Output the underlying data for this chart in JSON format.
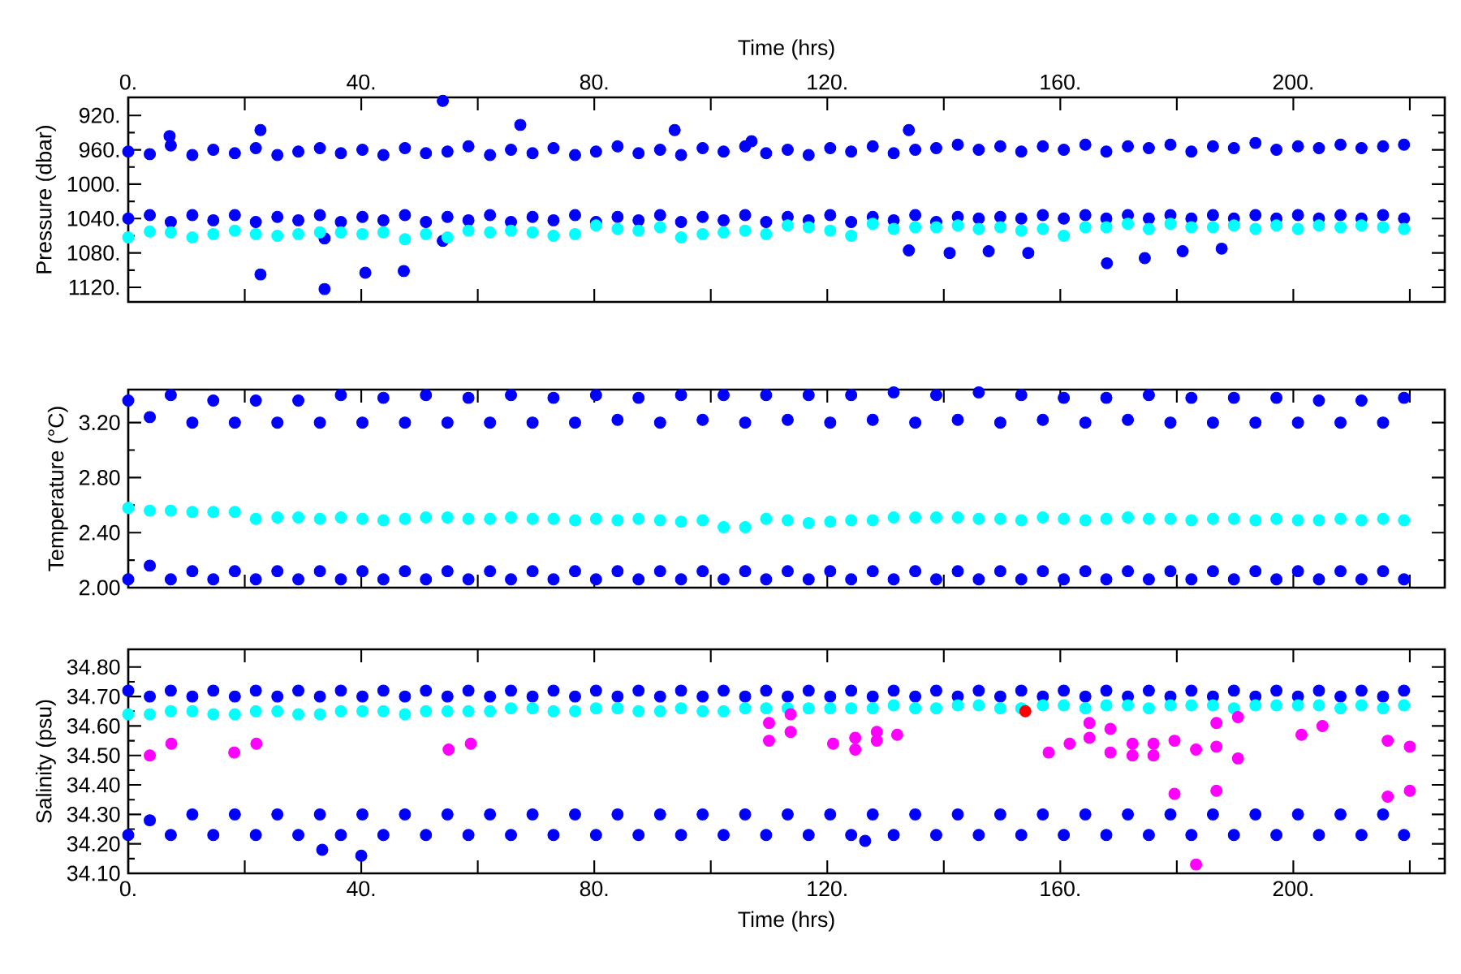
{
  "chart_data": [
    {
      "type": "scatter",
      "xlabel": "Time (hrs)",
      "ylabel": "Pressure (dbar)",
      "marker": "circle",
      "xlim": [
        0,
        226
      ],
      "xticks": [
        {
          "value": 0,
          "label": "0."
        },
        {
          "value": 20,
          "label": null
        },
        {
          "value": 40,
          "label": "40."
        },
        {
          "value": 60,
          "label": null
        },
        {
          "value": 80,
          "label": "80."
        },
        {
          "value": 100,
          "label": null
        },
        {
          "value": 120,
          "label": "120."
        },
        {
          "value": 140,
          "label": null
        },
        {
          "value": 160,
          "label": "160."
        },
        {
          "value": 180,
          "label": null
        },
        {
          "value": 200,
          "label": "200."
        },
        {
          "value": 220,
          "label": null
        }
      ],
      "ylim": [
        1137,
        899
      ],
      "yticks": [
        {
          "value": 920,
          "label": "920."
        },
        {
          "value": 960,
          "label": "960."
        },
        {
          "value": 1000,
          "label": "1000."
        },
        {
          "value": 1040,
          "label": "1040."
        },
        {
          "value": 1080,
          "label": "1080."
        },
        {
          "value": 1120,
          "label": "1120."
        }
      ],
      "series": [
        {
          "color": "#0000ff",
          "x": [
            0,
            3.7,
            7.3,
            11,
            14.6,
            18.3,
            21.9,
            25.6,
            29.2,
            32.9,
            36.5,
            40.2,
            43.8,
            47.5,
            51.1,
            54.8,
            58.4,
            62.1,
            65.7,
            69.4,
            73,
            76.7,
            80.3,
            84,
            87.6,
            91.3,
            94.9,
            98.6,
            102.2,
            105.9,
            109.5,
            113.2,
            116.8,
            120.5,
            124.1,
            127.8,
            131.4,
            135.1,
            138.7,
            142.4,
            146,
            149.7,
            153.3,
            157,
            160.6,
            164.3,
            167.9,
            171.6,
            175.2,
            178.9,
            182.5,
            186.2,
            189.8,
            193.5,
            197.1,
            200.8,
            204.4,
            208.1,
            211.7,
            215.4,
            219,
            0,
            3.7,
            7.3,
            11,
            14.6,
            18.3,
            21.9,
            25.6,
            29.2,
            32.9,
            36.5,
            40.2,
            43.8,
            47.5,
            51.1,
            54.8,
            58.4,
            62.1,
            65.7,
            69.4,
            73,
            76.7,
            80.3,
            84,
            87.6,
            91.3,
            94.9,
            98.6,
            102.2,
            105.9,
            109.5,
            113.2,
            116.8,
            120.5,
            124.1,
            127.8,
            131.4,
            135.1,
            138.7,
            142.4,
            146,
            149.7,
            153.3,
            157,
            160.6,
            164.3,
            167.9,
            171.6,
            175.2,
            178.9,
            182.5,
            186.2,
            189.8,
            193.5,
            197.1,
            200.8,
            204.4,
            208.1,
            211.7,
            215.4,
            219,
            7.1,
            22.7,
            22.7,
            33.7,
            33.7,
            40.7,
            47.3,
            54,
            54,
            67.3,
            93.8,
            107,
            134,
            134,
            141,
            147.7,
            154.5,
            168,
            174.5,
            181,
            187.7
          ],
          "values": [
            962,
            965,
            955,
            966,
            960,
            964,
            958,
            966,
            962,
            958,
            964,
            960,
            966,
            958,
            964,
            962,
            956,
            966,
            960,
            964,
            958,
            966,
            962,
            956,
            964,
            960,
            966,
            958,
            962,
            956,
            964,
            960,
            966,
            958,
            962,
            956,
            964,
            960,
            958,
            954,
            960,
            956,
            962,
            956,
            960,
            954,
            962,
            956,
            958,
            954,
            962,
            956,
            958,
            952,
            960,
            956,
            958,
            954,
            958,
            956,
            954,
            1040,
            1036,
            1044,
            1036,
            1042,
            1036,
            1044,
            1038,
            1042,
            1036,
            1044,
            1038,
            1042,
            1036,
            1044,
            1038,
            1042,
            1036,
            1044,
            1038,
            1042,
            1036,
            1044,
            1038,
            1042,
            1036,
            1044,
            1038,
            1042,
            1036,
            1044,
            1038,
            1042,
            1036,
            1044,
            1038,
            1042,
            1036,
            1044,
            1038,
            1040,
            1038,
            1040,
            1036,
            1040,
            1036,
            1040,
            1036,
            1040,
            1036,
            1040,
            1036,
            1040,
            1036,
            1040,
            1036,
            1040,
            1036,
            1040,
            1036,
            1040,
            944,
            937,
            1105,
            1122,
            1063,
            1103,
            1101,
            903,
            1066,
            931,
            937,
            950,
            937,
            1077,
            1080,
            1078,
            1080,
            1092,
            1086,
            1078,
            1075
          ]
        },
        {
          "color": "#00ffff",
          "x": [
            0,
            3.7,
            7.3,
            11,
            14.6,
            18.3,
            21.9,
            25.6,
            29.2,
            32.9,
            36.5,
            40.2,
            43.8,
            47.5,
            51.1,
            54.8,
            58.4,
            62.1,
            65.7,
            69.4,
            73,
            76.7,
            80.3,
            84,
            87.6,
            91.3,
            94.9,
            98.6,
            102.2,
            105.9,
            109.5,
            113.2,
            116.8,
            120.5,
            124.1,
            127.8,
            131.4,
            135.1,
            138.7,
            142.4,
            146,
            149.7,
            153.3,
            157,
            160.6,
            164.3,
            167.9,
            171.6,
            175.2,
            178.9,
            182.5,
            186.2,
            189.8,
            193.5,
            197.1,
            200.8,
            204.4,
            208.1,
            211.7,
            215.4,
            219
          ],
          "values": [
            1062,
            1055,
            1056,
            1062,
            1058,
            1054,
            1058,
            1060,
            1058,
            1056,
            1056,
            1058,
            1056,
            1064,
            1058,
            1062,
            1054,
            1056,
            1054,
            1056,
            1060,
            1058,
            1048,
            1052,
            1054,
            1050,
            1062,
            1058,
            1056,
            1054,
            1058,
            1048,
            1050,
            1054,
            1060,
            1046,
            1052,
            1050,
            1050,
            1048,
            1052,
            1050,
            1054,
            1052,
            1060,
            1050,
            1050,
            1046,
            1052,
            1046,
            1050,
            1050,
            1048,
            1052,
            1048,
            1052,
            1048,
            1050,
            1048,
            1050,
            1052
          ]
        }
      ]
    },
    {
      "type": "scatter",
      "ylabel": "Temperature (°C)",
      "marker": "circle",
      "tick_labels": "y",
      "xlim": [
        0,
        226
      ],
      "xticks": [
        {
          "value": 0,
          "label": null
        },
        {
          "value": 20,
          "label": null
        },
        {
          "value": 40,
          "label": null
        },
        {
          "value": 60,
          "label": null
        },
        {
          "value": 80,
          "label": null
        },
        {
          "value": 100,
          "label": null
        },
        {
          "value": 120,
          "label": null
        },
        {
          "value": 140,
          "label": null
        },
        {
          "value": 160,
          "label": null
        },
        {
          "value": 180,
          "label": null
        },
        {
          "value": 200,
          "label": null
        },
        {
          "value": 220,
          "label": null
        }
      ],
      "ylim": [
        2.0,
        3.44
      ],
      "yticks": [
        {
          "value": 2.0,
          "label": "2.00"
        },
        {
          "value": 2.4,
          "label": "2.40"
        },
        {
          "value": 2.8,
          "label": "2.80"
        },
        {
          "value": 3.2,
          "label": "3.20"
        }
      ],
      "series": [
        {
          "color": "#0000ff",
          "x": [
            0,
            3.7,
            7.3,
            11,
            14.6,
            18.3,
            21.9,
            25.6,
            29.2,
            32.9,
            36.5,
            40.2,
            43.8,
            47.5,
            51.1,
            54.8,
            58.4,
            62.1,
            65.7,
            69.4,
            73,
            76.7,
            80.3,
            84,
            87.6,
            91.3,
            94.9,
            98.6,
            102.2,
            105.9,
            109.5,
            113.2,
            116.8,
            120.5,
            124.1,
            127.8,
            131.4,
            135.1,
            138.7,
            142.4,
            146,
            149.7,
            153.3,
            157,
            160.6,
            164.3,
            167.9,
            171.6,
            175.2,
            178.9,
            182.5,
            186.2,
            189.8,
            193.5,
            197.1,
            200.8,
            204.4,
            208.1,
            211.7,
            215.4,
            219,
            0,
            3.7,
            7.3,
            11,
            14.6,
            18.3,
            21.9,
            25.6,
            29.2,
            32.9,
            36.5,
            40.2,
            43.8,
            47.5,
            51.1,
            54.8,
            58.4,
            62.1,
            65.7,
            69.4,
            73,
            76.7,
            80.3,
            84,
            87.6,
            91.3,
            94.9,
            98.6,
            102.2,
            105.9,
            109.5,
            113.2,
            116.8,
            120.5,
            124.1,
            127.8,
            131.4,
            135.1,
            138.7,
            142.4,
            146,
            149.7,
            153.3,
            157,
            160.6,
            164.3,
            167.9,
            171.6,
            175.2,
            178.9,
            182.5,
            186.2,
            189.8,
            193.5,
            197.1,
            200.8,
            204.4,
            208.1,
            211.7,
            215.4,
            219
          ],
          "values": [
            3.36,
            3.24,
            3.4,
            3.2,
            3.36,
            3.2,
            3.36,
            3.2,
            3.36,
            3.2,
            3.4,
            3.2,
            3.38,
            3.2,
            3.4,
            3.2,
            3.38,
            3.2,
            3.4,
            3.2,
            3.38,
            3.2,
            3.4,
            3.22,
            3.38,
            3.2,
            3.4,
            3.22,
            3.4,
            3.2,
            3.4,
            3.22,
            3.4,
            3.2,
            3.4,
            3.22,
            3.42,
            3.2,
            3.4,
            3.22,
            3.42,
            3.2,
            3.4,
            3.22,
            3.38,
            3.2,
            3.38,
            3.22,
            3.4,
            3.2,
            3.38,
            3.2,
            3.38,
            3.2,
            3.38,
            3.2,
            3.36,
            3.2,
            3.36,
            3.2,
            3.38,
            2.06,
            2.16,
            2.06,
            2.12,
            2.06,
            2.12,
            2.06,
            2.12,
            2.06,
            2.12,
            2.06,
            2.12,
            2.06,
            2.12,
            2.06,
            2.12,
            2.06,
            2.12,
            2.06,
            2.12,
            2.06,
            2.12,
            2.06,
            2.12,
            2.06,
            2.12,
            2.06,
            2.12,
            2.06,
            2.12,
            2.06,
            2.12,
            2.06,
            2.12,
            2.06,
            2.12,
            2.06,
            2.12,
            2.06,
            2.12,
            2.06,
            2.12,
            2.06,
            2.12,
            2.06,
            2.12,
            2.06,
            2.12,
            2.06,
            2.12,
            2.06,
            2.12,
            2.06,
            2.12,
            2.06,
            2.12,
            2.06,
            2.12,
            2.06,
            2.12,
            2.06
          ]
        },
        {
          "color": "#00ffff",
          "x": [
            0,
            3.7,
            7.3,
            11,
            14.6,
            18.3,
            21.9,
            25.6,
            29.2,
            32.9,
            36.5,
            40.2,
            43.8,
            47.5,
            51.1,
            54.8,
            58.4,
            62.1,
            65.7,
            69.4,
            73,
            76.7,
            80.3,
            84,
            87.6,
            91.3,
            94.9,
            98.6,
            102.2,
            105.9,
            109.5,
            113.2,
            116.8,
            120.5,
            124.1,
            127.8,
            131.4,
            135.1,
            138.7,
            142.4,
            146,
            149.7,
            153.3,
            157,
            160.6,
            164.3,
            167.9,
            171.6,
            175.2,
            178.9,
            182.5,
            186.2,
            189.8,
            193.5,
            197.1,
            200.8,
            204.4,
            208.1,
            211.7,
            215.4,
            219
          ],
          "values": [
            2.58,
            2.56,
            2.56,
            2.55,
            2.55,
            2.55,
            2.5,
            2.51,
            2.51,
            2.5,
            2.51,
            2.5,
            2.49,
            2.5,
            2.51,
            2.51,
            2.5,
            2.5,
            2.51,
            2.5,
            2.5,
            2.49,
            2.5,
            2.49,
            2.5,
            2.49,
            2.48,
            2.49,
            2.44,
            2.44,
            2.5,
            2.49,
            2.47,
            2.48,
            2.49,
            2.49,
            2.51,
            2.51,
            2.51,
            2.51,
            2.5,
            2.5,
            2.49,
            2.51,
            2.5,
            2.49,
            2.5,
            2.51,
            2.5,
            2.5,
            2.49,
            2.5,
            2.5,
            2.49,
            2.5,
            2.49,
            2.49,
            2.5,
            2.49,
            2.5,
            2.49
          ]
        }
      ]
    },
    {
      "type": "scatter",
      "xlabel": "Time (hrs)",
      "ylabel": "Salinity (psu)",
      "marker": "circle",
      "xlim": [
        0,
        226
      ],
      "xticks": [
        {
          "value": 0,
          "label": "0."
        },
        {
          "value": 20,
          "label": null
        },
        {
          "value": 40,
          "label": "40."
        },
        {
          "value": 60,
          "label": null
        },
        {
          "value": 80,
          "label": "80."
        },
        {
          "value": 100,
          "label": null
        },
        {
          "value": 120,
          "label": "120."
        },
        {
          "value": 140,
          "label": null
        },
        {
          "value": 160,
          "label": "160."
        },
        {
          "value": 180,
          "label": null
        },
        {
          "value": 200,
          "label": "200."
        },
        {
          "value": 220,
          "label": null
        }
      ],
      "ylim": [
        34.1,
        34.86
      ],
      "yticks": [
        {
          "value": 34.1,
          "label": "34.10"
        },
        {
          "value": 34.2,
          "label": "34.20"
        },
        {
          "value": 34.3,
          "label": "34.30"
        },
        {
          "value": 34.4,
          "label": "34.40"
        },
        {
          "value": 34.5,
          "label": "34.50"
        },
        {
          "value": 34.6,
          "label": "34.60"
        },
        {
          "value": 34.7,
          "label": "34.70"
        },
        {
          "value": 34.8,
          "label": "34.80"
        }
      ],
      "series": [
        {
          "color": "#0000ff",
          "x": [
            0,
            3.7,
            7.3,
            11,
            14.6,
            18.3,
            21.9,
            25.6,
            29.2,
            32.9,
            36.5,
            40.2,
            43.8,
            47.5,
            51.1,
            54.8,
            58.4,
            62.1,
            65.7,
            69.4,
            73,
            76.7,
            80.3,
            84,
            87.6,
            91.3,
            94.9,
            98.6,
            102.2,
            105.9,
            109.5,
            113.2,
            116.8,
            120.5,
            124.1,
            127.8,
            131.4,
            135.1,
            138.7,
            142.4,
            146,
            149.7,
            153.3,
            157,
            160.6,
            164.3,
            167.9,
            171.6,
            175.2,
            178.9,
            182.5,
            186.2,
            189.8,
            193.5,
            197.1,
            200.8,
            204.4,
            208.1,
            211.7,
            215.4,
            219,
            0,
            3.7,
            7.3,
            11,
            14.6,
            18.3,
            21.9,
            25.6,
            29.2,
            32.9,
            36.5,
            40.2,
            43.8,
            47.5,
            51.1,
            54.8,
            58.4,
            62.1,
            65.7,
            69.4,
            73,
            76.7,
            80.3,
            84,
            87.6,
            91.3,
            94.9,
            98.6,
            102.2,
            105.9,
            109.5,
            113.2,
            116.8,
            120.5,
            124.1,
            127.8,
            131.4,
            135.1,
            138.7,
            142.4,
            146,
            149.7,
            153.3,
            157,
            160.6,
            164.3,
            167.9,
            171.6,
            175.2,
            178.9,
            182.5,
            186.2,
            189.8,
            193.5,
            197.1,
            200.8,
            204.4,
            208.1,
            211.7,
            215.4,
            219,
            33.3,
            40,
            126.5
          ],
          "values": [
            34.72,
            34.7,
            34.72,
            34.7,
            34.72,
            34.7,
            34.72,
            34.7,
            34.72,
            34.7,
            34.72,
            34.7,
            34.72,
            34.7,
            34.72,
            34.7,
            34.72,
            34.7,
            34.72,
            34.7,
            34.72,
            34.7,
            34.72,
            34.7,
            34.72,
            34.7,
            34.72,
            34.7,
            34.72,
            34.7,
            34.72,
            34.7,
            34.72,
            34.7,
            34.72,
            34.7,
            34.72,
            34.7,
            34.72,
            34.7,
            34.72,
            34.7,
            34.72,
            34.7,
            34.72,
            34.7,
            34.72,
            34.7,
            34.72,
            34.7,
            34.72,
            34.7,
            34.72,
            34.7,
            34.72,
            34.7,
            34.72,
            34.7,
            34.72,
            34.7,
            34.72,
            34.23,
            34.28,
            34.23,
            34.3,
            34.23,
            34.3,
            34.23,
            34.3,
            34.23,
            34.3,
            34.23,
            34.3,
            34.23,
            34.3,
            34.23,
            34.3,
            34.23,
            34.3,
            34.23,
            34.3,
            34.23,
            34.3,
            34.23,
            34.3,
            34.23,
            34.3,
            34.23,
            34.3,
            34.23,
            34.3,
            34.23,
            34.3,
            34.23,
            34.3,
            34.23,
            34.3,
            34.23,
            34.3,
            34.23,
            34.3,
            34.23,
            34.3,
            34.23,
            34.3,
            34.23,
            34.3,
            34.23,
            34.3,
            34.23,
            34.3,
            34.23,
            34.3,
            34.23,
            34.3,
            34.23,
            34.3,
            34.23,
            34.3,
            34.23,
            34.3,
            34.23,
            34.18,
            34.16,
            34.21
          ]
        },
        {
          "color": "#00ffff",
          "x": [
            0,
            3.7,
            7.3,
            11,
            14.6,
            18.3,
            21.9,
            25.6,
            29.2,
            32.9,
            36.5,
            40.2,
            43.8,
            47.5,
            51.1,
            54.8,
            58.4,
            62.1,
            65.7,
            69.4,
            73,
            76.7,
            80.3,
            84,
            87.6,
            91.3,
            94.9,
            98.6,
            102.2,
            105.9,
            109.5,
            113.2,
            116.8,
            120.5,
            124.1,
            127.8,
            131.4,
            135.1,
            138.7,
            142.4,
            146,
            149.7,
            153.3,
            157,
            160.6,
            164.3,
            167.9,
            171.6,
            175.2,
            178.9,
            182.5,
            186.2,
            189.8,
            193.5,
            197.1,
            200.8,
            204.4,
            208.1,
            211.7,
            215.4,
            219
          ],
          "values": [
            34.64,
            34.64,
            34.65,
            34.65,
            34.64,
            34.64,
            34.65,
            34.65,
            34.64,
            34.64,
            34.65,
            34.65,
            34.65,
            34.64,
            34.65,
            34.65,
            34.65,
            34.65,
            34.66,
            34.66,
            34.65,
            34.65,
            34.66,
            34.66,
            34.65,
            34.65,
            34.66,
            34.65,
            34.65,
            34.66,
            34.66,
            34.66,
            34.66,
            34.66,
            34.66,
            34.66,
            34.67,
            34.66,
            34.66,
            34.67,
            34.67,
            34.66,
            34.66,
            34.67,
            34.67,
            34.66,
            34.67,
            34.67,
            34.66,
            34.67,
            34.67,
            34.67,
            34.66,
            34.67,
            34.67,
            34.67,
            34.67,
            34.66,
            34.67,
            34.66,
            34.67
          ]
        },
        {
          "color": "#ff00ff",
          "x": [
            3.7,
            7.4,
            18.2,
            22,
            55,
            58.8,
            110,
            110,
            113.7,
            113.7,
            121,
            124.8,
            124.8,
            128.5,
            128.5,
            132,
            158,
            161.6,
            165,
            165,
            168.6,
            168.6,
            172.4,
            172.4,
            176,
            176,
            179.6,
            179.6,
            183.3,
            183.3,
            186.8,
            186.8,
            186.8,
            190.5,
            190.5,
            201.4,
            205,
            216.2,
            216.2,
            220,
            220
          ],
          "values": [
            34.5,
            34.54,
            34.51,
            34.54,
            34.52,
            34.54,
            34.61,
            34.55,
            34.64,
            34.58,
            34.54,
            34.56,
            34.52,
            34.58,
            34.55,
            34.57,
            34.51,
            34.54,
            34.61,
            34.56,
            34.59,
            34.51,
            34.54,
            34.5,
            34.54,
            34.5,
            34.55,
            34.37,
            34.52,
            34.13,
            34.61,
            34.53,
            34.38,
            34.63,
            34.49,
            34.57,
            34.6,
            34.55,
            34.36,
            34.53,
            34.38
          ]
        },
        {
          "color": "#ff0000",
          "x": [
            154
          ],
          "values": [
            34.65
          ]
        }
      ]
    }
  ]
}
